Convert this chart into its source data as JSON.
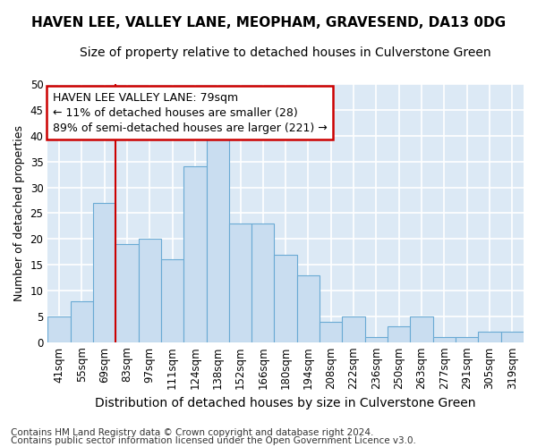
{
  "title1": "HAVEN LEE, VALLEY LANE, MEOPHAM, GRAVESEND, DA13 0DG",
  "title2": "Size of property relative to detached houses in Culverstone Green",
  "xlabel": "Distribution of detached houses by size in Culverstone Green",
  "ylabel": "Number of detached properties",
  "footnote1": "Contains HM Land Registry data © Crown copyright and database right 2024.",
  "footnote2": "Contains public sector information licensed under the Open Government Licence v3.0.",
  "categories": [
    "41sqm",
    "55sqm",
    "69sqm",
    "83sqm",
    "97sqm",
    "111sqm",
    "124sqm",
    "138sqm",
    "152sqm",
    "166sqm",
    "180sqm",
    "194sqm",
    "208sqm",
    "222sqm",
    "236sqm",
    "250sqm",
    "263sqm",
    "277sqm",
    "291sqm",
    "305sqm",
    "319sqm"
  ],
  "values": [
    5,
    8,
    27,
    19,
    20,
    16,
    34,
    41,
    23,
    23,
    17,
    13,
    4,
    5,
    1,
    3,
    5,
    1,
    1,
    2,
    2
  ],
  "bar_color": "#c9ddf0",
  "bar_edge_color": "#6aaad4",
  "marker_bin_index": 3,
  "marker_color": "#cc0000",
  "annotation_line1": "HAVEN LEE VALLEY LANE: 79sqm",
  "annotation_line2": "← 11% of detached houses are smaller (28)",
  "annotation_line3": "89% of semi-detached houses are larger (221) →",
  "annotation_box_color": "#ffffff",
  "annotation_box_edge": "#cc0000",
  "ylim": [
    0,
    50
  ],
  "yticks": [
    0,
    5,
    10,
    15,
    20,
    25,
    30,
    35,
    40,
    45,
    50
  ],
  "background_color": "#dce9f5",
  "plot_bg_color": "#dce9f5",
  "fig_bg_color": "#ffffff",
  "grid_color": "#ffffff",
  "title1_fontsize": 11,
  "title2_fontsize": 10,
  "xlabel_fontsize": 10,
  "ylabel_fontsize": 9,
  "tick_fontsize": 8.5,
  "annotation_fontsize": 9,
  "footnote_fontsize": 7.5
}
